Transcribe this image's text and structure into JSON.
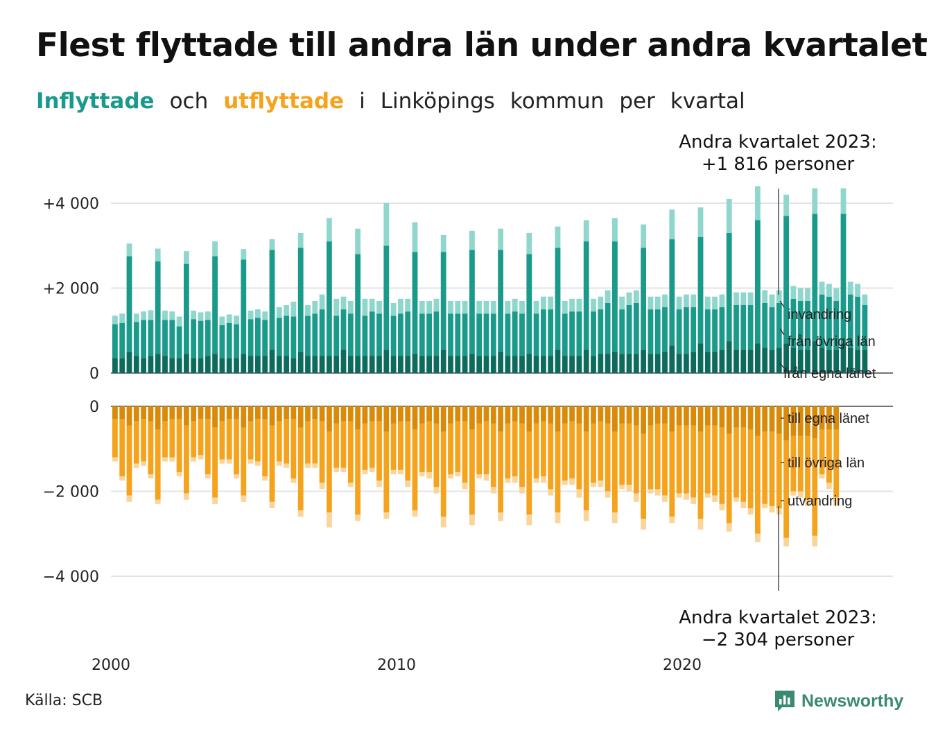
{
  "title": "Flest flyttade till andra län under andra kvartalet",
  "subtitle": {
    "part1": "Inflyttade",
    "part2": "och",
    "part3": "utflyttade",
    "part4": "i",
    "part5": "Linköpings",
    "part6": "kommun",
    "part7": "per",
    "part8": "kvartal"
  },
  "annotation_top": {
    "line1": "Andra kvartalet 2023:",
    "line2": "+1 816 personer"
  },
  "annotation_bottom": {
    "line1": "Andra kvartalet 2023:",
    "line2": "−2 304 personer"
  },
  "source": "Källa: SCB",
  "brand": "Newsworthy",
  "colors": {
    "in_egna": "#0d6b5e",
    "in_ovriga": "#1a9a8a",
    "in_invandring": "#8fd6cc",
    "out_egna": "#d98a08",
    "out_ovriga": "#f5a21c",
    "out_utvandring": "#fad59a",
    "grid": "#e3e3e3",
    "brand": "#3a8a6e"
  },
  "chart_data": [
    {
      "type": "bar",
      "stacked": true,
      "ylim": [
        0,
        4000
      ],
      "yticks": [
        0,
        2000,
        4000
      ],
      "ytick_labels": [
        "0",
        "+2 000",
        "+4 000"
      ],
      "x_tick_labels": [
        "2000",
        "2010",
        "2020"
      ],
      "x_ticks": [
        2000,
        2010,
        2020
      ],
      "x_start": 2000.0,
      "x_step": 0.25,
      "series": [
        {
          "name": "från egna länet",
          "values": [
            350,
            350,
            500,
            400,
            350,
            400,
            450,
            400,
            350,
            350,
            450,
            350,
            350,
            400,
            450,
            350,
            350,
            350,
            450,
            400,
            400,
            400,
            550,
            400,
            400,
            350,
            500,
            400,
            400,
            400,
            400,
            400,
            550,
            400,
            400,
            400,
            400,
            400,
            550,
            400,
            400,
            400,
            450,
            400,
            400,
            400,
            550,
            400,
            400,
            400,
            450,
            400,
            400,
            400,
            500,
            400,
            400,
            400,
            450,
            400,
            400,
            400,
            550,
            400,
            400,
            400,
            550,
            400,
            450,
            450,
            500,
            450,
            450,
            450,
            550,
            450,
            450,
            500,
            650,
            450,
            450,
            500,
            700,
            500,
            500,
            550,
            750,
            550,
            550,
            550,
            700,
            600,
            550,
            600,
            700,
            600,
            550,
            550,
            750,
            600,
            550,
            550,
            700,
            600,
            550,
            550
          ]
        },
        {
          "name": "från övriga län",
          "values": [
            800,
            830,
            2250,
            800,
            900,
            850,
            2180,
            850,
            900,
            750,
            2120,
            920,
            880,
            850,
            2300,
            780,
            830,
            800,
            2220,
            870,
            900,
            850,
            2350,
            900,
            950,
            980,
            2450,
            950,
            1000,
            1100,
            2700,
            950,
            950,
            1000,
            2400,
            950,
            1050,
            1000,
            2450,
            950,
            1000,
            1050,
            2400,
            1000,
            1000,
            1050,
            2300,
            1000,
            1000,
            1000,
            2450,
            1000,
            1000,
            1000,
            2400,
            1000,
            1050,
            1000,
            2350,
            1000,
            1100,
            1100,
            2400,
            1000,
            1050,
            1050,
            2550,
            1050,
            1050,
            1200,
            2600,
            1050,
            1150,
            1200,
            2400,
            1050,
            1050,
            1050,
            2500,
            1050,
            1100,
            1050,
            2500,
            1000,
            1000,
            1000,
            2550,
            1050,
            1050,
            1050,
            2900,
            1050,
            1000,
            1050,
            3000,
            1150,
            1150,
            1150,
            3000,
            1250,
            1250,
            1150,
            3050,
            1250,
            1250,
            1050
          ]
        },
        {
          "name": "invandring",
          "values": [
            200,
            220,
            300,
            200,
            200,
            230,
            300,
            220,
            200,
            230,
            300,
            200,
            200,
            200,
            350,
            200,
            200,
            200,
            250,
            200,
            200,
            200,
            250,
            250,
            250,
            350,
            350,
            250,
            300,
            350,
            550,
            400,
            300,
            300,
            600,
            400,
            300,
            300,
            1000,
            300,
            350,
            300,
            700,
            300,
            300,
            300,
            400,
            300,
            300,
            300,
            450,
            300,
            300,
            300,
            500,
            300,
            300,
            300,
            500,
            300,
            300,
            300,
            500,
            300,
            300,
            300,
            500,
            300,
            300,
            300,
            550,
            300,
            300,
            300,
            550,
            300,
            300,
            300,
            700,
            300,
            300,
            300,
            700,
            300,
            300,
            300,
            800,
            300,
            300,
            300,
            800,
            300,
            300,
            300,
            500,
            300,
            300,
            300,
            600,
            300,
            300,
            300,
            600,
            300,
            300,
            250
          ]
        }
      ]
    },
    {
      "type": "bar",
      "stacked": true,
      "ylim": [
        -4000,
        0
      ],
      "yticks": [
        0,
        -2000,
        -4000
      ],
      "ytick_labels": [
        "0",
        "−2 000",
        "−4 000"
      ],
      "x_tick_labels": [
        "2000",
        "2010",
        "2020"
      ],
      "x_ticks": [
        2000,
        2010,
        2020
      ],
      "x_start": 2000.0,
      "x_step": 0.25,
      "series": [
        {
          "name": "till egna länet",
          "values": [
            -300,
            -300,
            -450,
            -350,
            -300,
            -350,
            -550,
            -350,
            -300,
            -300,
            -450,
            -350,
            -300,
            -300,
            -500,
            -350,
            -300,
            -300,
            -500,
            -350,
            -300,
            -300,
            -450,
            -350,
            -300,
            -300,
            -500,
            -350,
            -300,
            -350,
            -600,
            -400,
            -350,
            -350,
            -550,
            -400,
            -350,
            -350,
            -600,
            -400,
            -350,
            -350,
            -550,
            -400,
            -350,
            -400,
            -600,
            -400,
            -350,
            -350,
            -550,
            -400,
            -350,
            -400,
            -600,
            -400,
            -350,
            -400,
            -600,
            -400,
            -350,
            -400,
            -600,
            -400,
            -350,
            -400,
            -600,
            -400,
            -350,
            -400,
            -600,
            -400,
            -400,
            -450,
            -650,
            -450,
            -400,
            -400,
            -600,
            -450,
            -450,
            -450,
            -600,
            -450,
            -450,
            -500,
            -650,
            -500,
            -500,
            -550,
            -700,
            -600,
            -600,
            -650,
            -800,
            -700,
            -700,
            -700,
            -750,
            -550,
            -550,
            -550
          ]
        },
        {
          "name": "till övriga län",
          "values": [
            -900,
            -1350,
            -1650,
            -1000,
            -1000,
            -1250,
            -1650,
            -850,
            -900,
            -1250,
            -1600,
            -850,
            -850,
            -1300,
            -1650,
            -900,
            -950,
            -1300,
            -1600,
            -900,
            -1000,
            -1350,
            -1800,
            -950,
            -1050,
            -1400,
            -1950,
            -1000,
            -1050,
            -1450,
            -1900,
            -1050,
            -1100,
            -1450,
            -2000,
            -1100,
            -1100,
            -1400,
            -1900,
            -1100,
            -1150,
            -1400,
            -1900,
            -1150,
            -1200,
            -1500,
            -2000,
            -1200,
            -1200,
            -1450,
            -2000,
            -1200,
            -1250,
            -1500,
            -1900,
            -1300,
            -1300,
            -1500,
            -1950,
            -1300,
            -1300,
            -1550,
            -1900,
            -1350,
            -1350,
            -1550,
            -1850,
            -1400,
            -1400,
            -1600,
            -1900,
            -1450,
            -1450,
            -1600,
            -2000,
            -1500,
            -1550,
            -1700,
            -2000,
            -1600,
            -1600,
            -1700,
            -2050,
            -1600,
            -1650,
            -1800,
            -2100,
            -1650,
            -1750,
            -1850,
            -2300,
            -1700,
            -1750,
            -1750,
            -2300,
            -1300,
            -1300,
            -1500,
            -2300,
            -1050,
            -1250,
            -1600
          ]
        },
        {
          "name": "utvandring",
          "values": [
            -100,
            -100,
            -150,
            -100,
            -100,
            -100,
            -100,
            -100,
            -100,
            -100,
            -150,
            -100,
            -100,
            -100,
            -150,
            -100,
            -100,
            -100,
            -150,
            -100,
            -100,
            -100,
            -150,
            -100,
            -100,
            -100,
            -150,
            -100,
            -100,
            -150,
            -350,
            -100,
            -100,
            -100,
            -150,
            -100,
            -100,
            -150,
            -150,
            -100,
            -100,
            -150,
            -150,
            -100,
            -150,
            -150,
            -250,
            -100,
            -100,
            -150,
            -250,
            -100,
            -150,
            -150,
            -200,
            -100,
            -150,
            -150,
            -250,
            -100,
            -150,
            -150,
            -250,
            -100,
            -150,
            -200,
            -250,
            -100,
            -150,
            -150,
            -250,
            -100,
            -150,
            -200,
            -250,
            -100,
            -150,
            -150,
            -150,
            -100,
            -150,
            -150,
            -250,
            -100,
            -150,
            -150,
            -200,
            -100,
            -150,
            -150,
            -200,
            -100,
            -150,
            -150,
            -200,
            -100,
            -150,
            -150,
            -250,
            -100,
            -150,
            -200
          ]
        }
      ]
    }
  ]
}
